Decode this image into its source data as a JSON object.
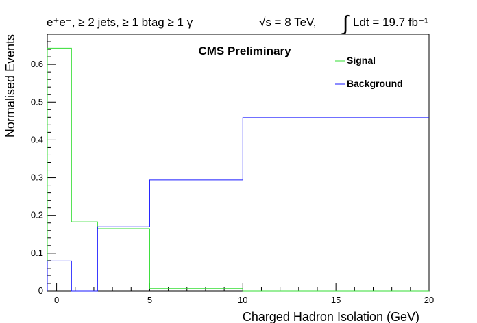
{
  "header": {
    "selection": "e⁺e⁻, ≥ 2 jets, ≥ 1 btag ≥ 1 γ",
    "energy": "√s = 8 TeV,",
    "lumi_integral": "∫",
    "lumi": "Ldt = 19.7 fb⁻¹"
  },
  "label": "CMS Preliminary",
  "colors": {
    "signal": "#33dd33",
    "background": "#1a1aff",
    "label": "#1a1ad6"
  },
  "chart_data": {
    "type": "histogram",
    "xlabel": "Charged Hadron Isolation (GeV)",
    "ylabel": "Normalised Events",
    "xlim": [
      -0.5,
      20
    ],
    "ylim": [
      0,
      0.68
    ],
    "legend_position": "top-right",
    "x_ticks": [
      0,
      5,
      10,
      15,
      20
    ],
    "x_tick_labels": [
      "0",
      "5",
      "10",
      "15",
      "20"
    ],
    "y_ticks": [
      0,
      0.1,
      0.2,
      0.3,
      0.4,
      0.5,
      0.6
    ],
    "y_tick_labels": [
      "0",
      "0.1",
      "0.2",
      "0.3",
      "0.4",
      "0.5",
      "0.6"
    ],
    "bin_edges": [
      -0.5,
      0.8,
      2.2,
      5,
      10,
      20
    ],
    "series": [
      {
        "name": "Signal",
        "color": "#33dd33",
        "values": [
          0.643,
          0.183,
          0.165,
          0.006,
          0.0
        ]
      },
      {
        "name": "Background",
        "color": "#1a1aff",
        "values": [
          0.079,
          0.0,
          0.17,
          0.294,
          0.459
        ]
      }
    ]
  }
}
